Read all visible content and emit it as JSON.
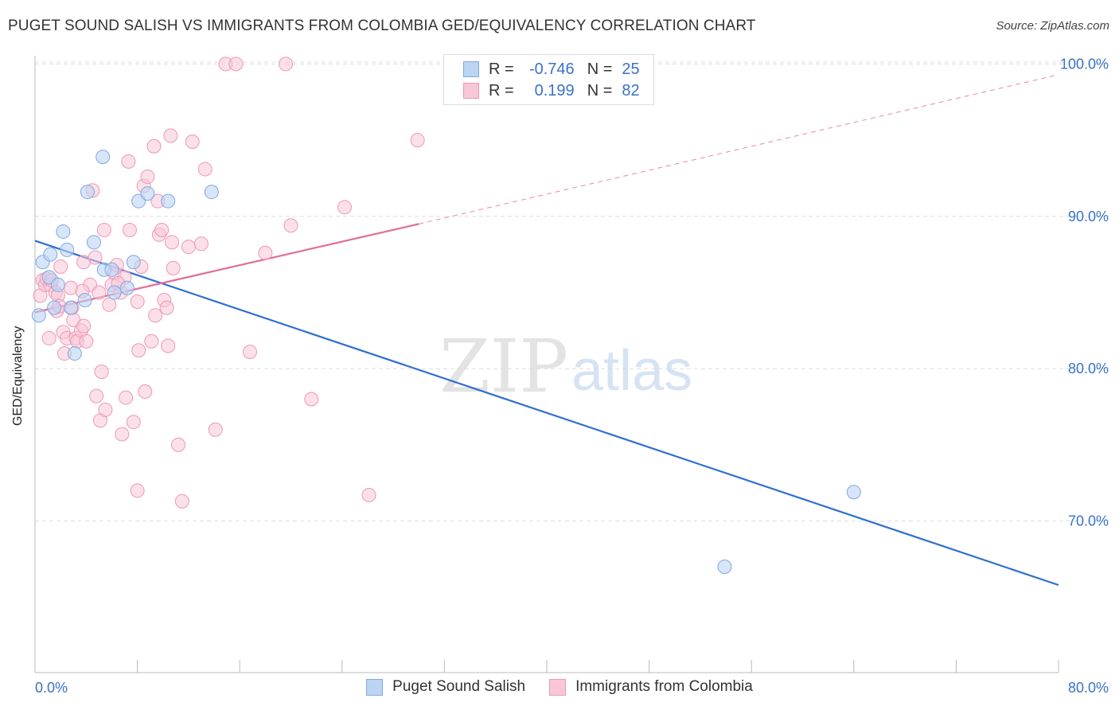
{
  "title": "PUGET SOUND SALISH VS IMMIGRANTS FROM COLOMBIA GED/EQUIVALENCY CORRELATION CHART",
  "source": "Source: ZipAtlas.com",
  "colors": {
    "blue_fill": "#bcd4f3",
    "blue_stroke": "#7fa9e0",
    "blue_line": "#2e6fd0",
    "pink_fill": "#f9c6d7",
    "pink_stroke": "#ec98b4",
    "pink_line": "#e36d96",
    "grid": "#dddddd",
    "tick_label": "#3a72c8"
  },
  "stats": {
    "r_label": "R =",
    "n_label": "N =",
    "rows": [
      {
        "series": "Puget Sound Salish",
        "r": "-0.746",
        "n": "25"
      },
      {
        "series": "Immigrants from Colombia",
        "r": "0.199",
        "n": "82"
      }
    ]
  },
  "watermark": {
    "part1": "ZIP",
    "part2": "atlas"
  },
  "chart_data": {
    "type": "scatter",
    "title": "PUGET SOUND SALISH VS IMMIGRANTS FROM COLOMBIA GED/EQUIVALENCY CORRELATION CHART",
    "xlabel": "",
    "ylabel": "GED/Equivalency",
    "xlim": [
      0,
      80
    ],
    "ylim": [
      60,
      101
    ],
    "x_tick_labels": [
      "0.0%",
      "80.0%"
    ],
    "y_ticks": [
      70,
      80,
      90,
      100
    ],
    "y_tick_labels": [
      "70.0%",
      "80.0%",
      "90.0%",
      "100.0%"
    ],
    "grid": true,
    "legend_position": "bottom-center",
    "series": [
      {
        "name": "Puget Sound Salish",
        "color": "#bcd4f3",
        "points": [
          [
            0.3,
            83.5
          ],
          [
            0.6,
            87.0
          ],
          [
            1.1,
            86.0
          ],
          [
            1.2,
            87.5
          ],
          [
            1.5,
            84.0
          ],
          [
            1.8,
            85.5
          ],
          [
            2.2,
            89.0
          ],
          [
            2.5,
            87.8
          ],
          [
            2.8,
            84.0
          ],
          [
            3.1,
            81.0
          ],
          [
            3.9,
            84.5
          ],
          [
            4.1,
            91.6
          ],
          [
            4.6,
            88.3
          ],
          [
            5.3,
            93.9
          ],
          [
            5.4,
            86.5
          ],
          [
            6.0,
            86.5
          ],
          [
            6.2,
            85.0
          ],
          [
            7.2,
            85.3
          ],
          [
            7.7,
            87.0
          ],
          [
            8.1,
            91.0
          ],
          [
            8.8,
            91.5
          ],
          [
            10.4,
            91.0
          ],
          [
            13.8,
            91.6
          ],
          [
            53.9,
            67.0
          ],
          [
            64.0,
            71.9
          ]
        ],
        "trend": {
          "x": [
            0,
            80
          ],
          "y": [
            88.4,
            65.8
          ]
        }
      },
      {
        "name": "Immigrants from Colombia",
        "color": "#f9c6d7",
        "points": [
          [
            0.4,
            84.8
          ],
          [
            0.6,
            85.8
          ],
          [
            0.8,
            85.5
          ],
          [
            0.9,
            85.9
          ],
          [
            1.1,
            82.0
          ],
          [
            1.2,
            85.5
          ],
          [
            1.3,
            85.8
          ],
          [
            1.6,
            85.0
          ],
          [
            1.7,
            83.8
          ],
          [
            1.8,
            84.8
          ],
          [
            1.9,
            84.1
          ],
          [
            2.0,
            86.7
          ],
          [
            2.2,
            82.4
          ],
          [
            2.3,
            81.0
          ],
          [
            2.5,
            82.0
          ],
          [
            2.8,
            85.3
          ],
          [
            2.9,
            84.0
          ],
          [
            3.0,
            83.2
          ],
          [
            3.2,
            82.0
          ],
          [
            3.3,
            81.8
          ],
          [
            3.6,
            82.5
          ],
          [
            3.8,
            82.8
          ],
          [
            3.8,
            87.0
          ],
          [
            4.0,
            81.8
          ],
          [
            4.3,
            85.5
          ],
          [
            4.5,
            91.7
          ],
          [
            4.7,
            87.3
          ],
          [
            4.8,
            78.2
          ],
          [
            5.0,
            85.0
          ],
          [
            5.1,
            76.6
          ],
          [
            5.2,
            79.8
          ],
          [
            5.4,
            89.1
          ],
          [
            5.5,
            77.3
          ],
          [
            5.8,
            84.2
          ],
          [
            6.0,
            85.5
          ],
          [
            6.2,
            86.3
          ],
          [
            6.4,
            86.8
          ],
          [
            6.7,
            85.0
          ],
          [
            6.8,
            75.7
          ],
          [
            7.0,
            86.0
          ],
          [
            7.1,
            78.1
          ],
          [
            7.3,
            93.6
          ],
          [
            7.4,
            89.1
          ],
          [
            7.7,
            76.5
          ],
          [
            8.0,
            84.4
          ],
          [
            8.1,
            81.2
          ],
          [
            8.3,
            86.7
          ],
          [
            8.5,
            92.0
          ],
          [
            8.6,
            78.5
          ],
          [
            8.8,
            92.6
          ],
          [
            9.1,
            81.8
          ],
          [
            9.3,
            94.6
          ],
          [
            9.6,
            91.0
          ],
          [
            9.7,
            88.8
          ],
          [
            9.9,
            89.1
          ],
          [
            10.1,
            84.5
          ],
          [
            10.3,
            84.0
          ],
          [
            10.4,
            81.5
          ],
          [
            10.6,
            95.3
          ],
          [
            10.7,
            88.3
          ],
          [
            10.8,
            86.6
          ],
          [
            11.2,
            75.0
          ],
          [
            11.5,
            71.3
          ],
          [
            12.3,
            94.9
          ],
          [
            13.0,
            88.2
          ],
          [
            13.3,
            93.1
          ],
          [
            14.1,
            76.0
          ],
          [
            8.0,
            72.0
          ],
          [
            14.9,
            100.0
          ],
          [
            15.7,
            100.0
          ],
          [
            16.8,
            81.1
          ],
          [
            18.0,
            87.6
          ],
          [
            19.6,
            100.0
          ],
          [
            20.0,
            89.4
          ],
          [
            21.6,
            78.0
          ],
          [
            24.2,
            90.6
          ],
          [
            26.1,
            71.7
          ],
          [
            29.9,
            95.0
          ],
          [
            3.7,
            85.1
          ],
          [
            6.5,
            85.6
          ],
          [
            12.0,
            88.0
          ],
          [
            9.4,
            83.5
          ]
        ],
        "trend_solid": {
          "x": [
            0,
            30
          ],
          "y": [
            83.7,
            89.5
          ]
        },
        "trend_dashed": {
          "x": [
            30,
            80
          ],
          "y": [
            89.5,
            99.3
          ]
        }
      }
    ]
  }
}
